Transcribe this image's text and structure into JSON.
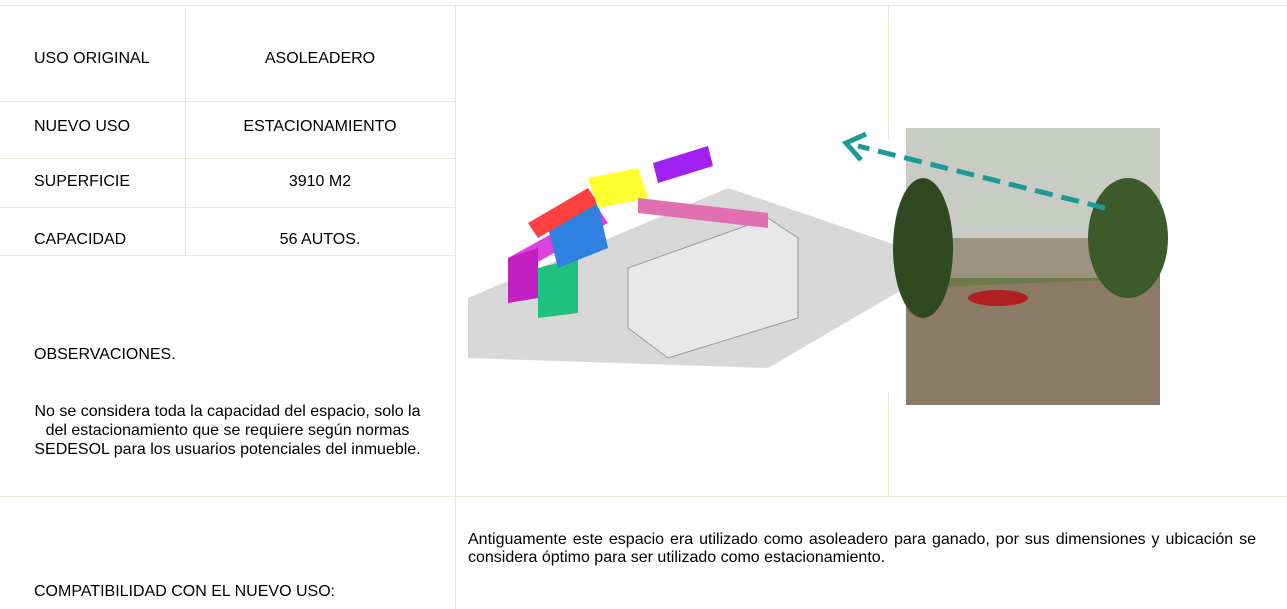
{
  "fields": [
    {
      "label": "USO ORIGINAL",
      "value": "ASOLEADERO"
    },
    {
      "label": "NUEVO USO",
      "value": "ESTACIONAMIENTO"
    },
    {
      "label": "SUPERFICIE",
      "value": "3910 M2"
    },
    {
      "label": "CAPACIDAD",
      "value": "56 AUTOS."
    }
  ],
  "observations": {
    "title": "OBSERVACIONES.",
    "text": "No se considera toda la capacidad del espacio, solo la del estacionamiento que se requiere según normas SEDESOL para los usuarios potenciales del inmueble."
  },
  "compatibility": {
    "label": "COMPATIBILIDAD CON EL NUEVO USO:",
    "text": "Antiguamente este espacio era utilizado como asoleadero para ganado, por sus dimensiones y ubicación se considera óptimo para ser utilizado como estacionamiento."
  }
}
